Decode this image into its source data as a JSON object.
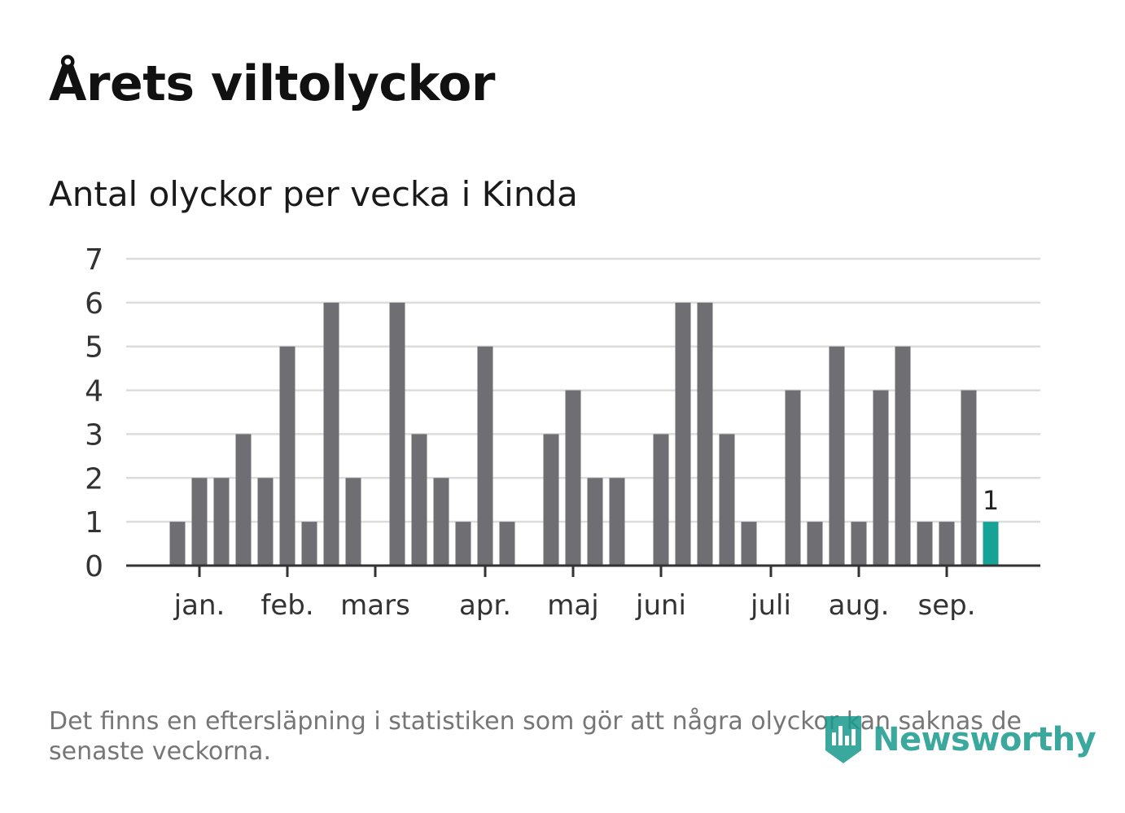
{
  "title": "Årets viltolyckor",
  "subtitle": "Antal olyckor per vecka i Kinda",
  "footnote": "Det finns en eftersläpning i statistiken som gör att några olyckor kan saknas de senaste veckorna.",
  "brand": "Newsworthy",
  "colors": {
    "bar": "#6e6e73",
    "highlight": "#14a396",
    "grid": "#dcdcdc",
    "axis": "#333333",
    "tick_text": "#333333"
  },
  "chart_data": {
    "type": "bar",
    "title": "Antal olyckor per vecka i Kinda",
    "xlabel": "",
    "ylabel": "",
    "ylim": [
      0,
      7
    ],
    "yticks": [
      0,
      1,
      2,
      3,
      4,
      5,
      6,
      7
    ],
    "grid": true,
    "weeks": [
      1,
      2,
      3,
      4,
      5,
      6,
      7,
      8,
      9,
      10,
      11,
      12,
      13,
      14,
      15,
      16,
      17,
      18,
      19,
      20,
      21,
      22,
      23,
      24,
      25,
      26,
      27,
      28,
      29,
      30,
      31,
      32,
      33,
      34,
      35,
      36,
      37,
      38,
      39,
      40
    ],
    "values": [
      0,
      1,
      2,
      2,
      3,
      2,
      5,
      1,
      6,
      2,
      0,
      6,
      3,
      2,
      1,
      5,
      1,
      0,
      3,
      4,
      2,
      2,
      0,
      3,
      6,
      6,
      3,
      1,
      0,
      4,
      1,
      5,
      1,
      4,
      5,
      1,
      1,
      4,
      1,
      null
    ],
    "highlight_index": 38,
    "highlight_label": "1",
    "month_labels": [
      {
        "label": "jan.",
        "week": 3
      },
      {
        "label": "feb.",
        "week": 7
      },
      {
        "label": "mars",
        "week": 11
      },
      {
        "label": "apr.",
        "week": 16
      },
      {
        "label": "maj",
        "week": 20
      },
      {
        "label": "juni",
        "week": 24
      },
      {
        "label": "juli",
        "week": 29
      },
      {
        "label": "aug.",
        "week": 33
      },
      {
        "label": "sep.",
        "week": 37
      }
    ]
  }
}
